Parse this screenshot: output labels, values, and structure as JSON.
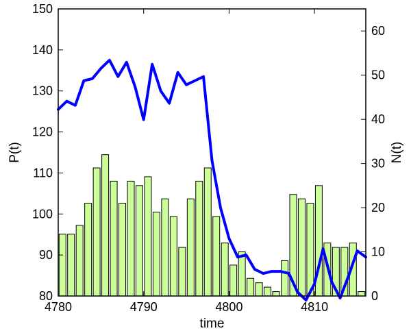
{
  "chart_data": {
    "type": "bar+line",
    "title": "",
    "xlabel": "time",
    "ylabel_left": "P(t)",
    "ylabel_right": "N(t)",
    "xlim": [
      4780,
      4816
    ],
    "ylim_left": [
      80,
      150
    ],
    "ylim_right": [
      0,
      65
    ],
    "x_ticks": [
      4780,
      4790,
      4800,
      4810
    ],
    "y_left_ticks": [
      80,
      90,
      100,
      110,
      120,
      130,
      140,
      150
    ],
    "y_right_ticks": [
      0,
      10,
      20,
      30,
      40,
      50,
      60
    ],
    "grid": false,
    "bar_color": "#ccff99",
    "line_color": "#0000ff",
    "bars": {
      "axis": "right",
      "x": [
        4780.5,
        4781.5,
        4782.5,
        4783.5,
        4784.5,
        4785.5,
        4786.5,
        4787.5,
        4788.5,
        4789.5,
        4790.5,
        4791.5,
        4792.5,
        4793.5,
        4794.5,
        4795.5,
        4796.5,
        4797.5,
        4798.5,
        4799.5,
        4800.5,
        4801.5,
        4802.5,
        4803.5,
        4804.5,
        4805.5,
        4806.5,
        4807.5,
        4808.5,
        4809.5,
        4810.5,
        4811.5,
        4812.5,
        4813.5,
        4814.5,
        4815.5
      ],
      "values": [
        14,
        14,
        16,
        21,
        29,
        32,
        26,
        21,
        26,
        25,
        27,
        19,
        22,
        18,
        11,
        22,
        26,
        29,
        18,
        12,
        7,
        10,
        4,
        3,
        2,
        1,
        8,
        23,
        22,
        21,
        25,
        12,
        11,
        11,
        12,
        1
      ]
    },
    "line": {
      "axis": "left",
      "x": [
        4780,
        4781,
        4782,
        4783,
        4784,
        4785,
        4786,
        4787,
        4788,
        4789,
        4790,
        4791,
        4792,
        4793,
        4794,
        4795,
        4796,
        4797,
        4798,
        4799,
        4800,
        4801,
        4802,
        4803,
        4804,
        4805,
        4806,
        4807,
        4808,
        4809,
        4810,
        4811,
        4812,
        4813,
        4814,
        4815,
        4816
      ],
      "values": [
        125.5,
        127.5,
        126.5,
        132.5,
        133,
        135.5,
        137.5,
        133.5,
        137,
        131,
        123,
        136.5,
        130,
        127,
        134.5,
        131.5,
        132.5,
        133.5,
        113,
        101.5,
        94,
        89.5,
        90,
        86.5,
        85.5,
        86,
        86,
        85.5,
        81,
        79,
        83,
        91.5,
        83.5,
        79.5,
        85,
        91,
        89.5
      ]
    }
  }
}
